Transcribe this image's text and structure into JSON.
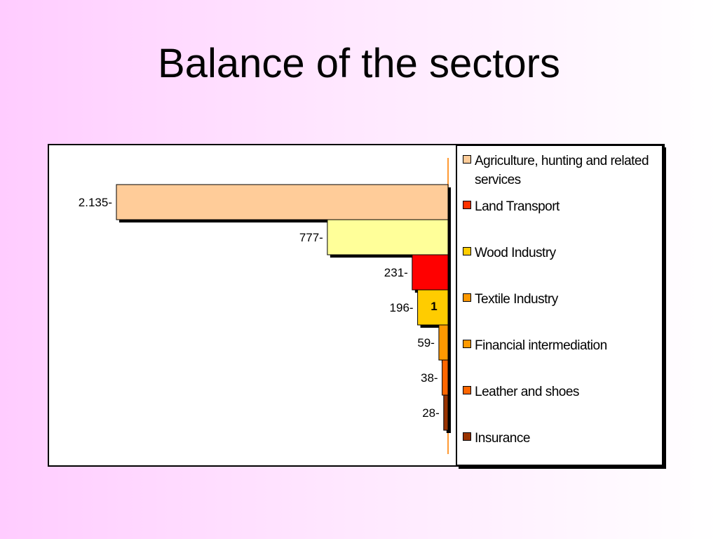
{
  "title": "Balance of the sectors",
  "chart_data": {
    "type": "bar",
    "orientation": "horizontal",
    "categories": [
      "Agriculture, hunting and related services",
      "Land Transport",
      "Wood Industry",
      "Textile Industry",
      "Financial intermediation",
      "Leather and shoes",
      "Insurance"
    ],
    "values": [
      -2135,
      -777,
      -231,
      -196,
      -59,
      -38,
      -28
    ],
    "value_labels": [
      "2.135-",
      "777-",
      "231-",
      "196-",
      "59-",
      "38-",
      "28-"
    ],
    "bar_colors": [
      "#ffcc99",
      "#ffff99",
      "#ff0000",
      "#ffcc00",
      "#ff9900",
      "#ff6600",
      "#993300"
    ],
    "category_label": "1",
    "legend": {
      "position": "right",
      "items": [
        {
          "label": "Agriculture, hunting and related services",
          "color": "#ffcc99"
        },
        {
          "label": "Land Transport",
          "color": "#ff3300"
        },
        {
          "label": "Wood Industry",
          "color": "#ffcc00"
        },
        {
          "label": "Textile Industry",
          "color": "#ff9900"
        },
        {
          "label": "Financial intermediation",
          "color": "#ff9900"
        },
        {
          "label": "Leather and shoes",
          "color": "#ff6600"
        },
        {
          "label": "Insurance",
          "color": "#993300"
        }
      ]
    },
    "xlim": [
      -2135,
      0
    ],
    "grid": false,
    "style": "3d-shadow"
  }
}
